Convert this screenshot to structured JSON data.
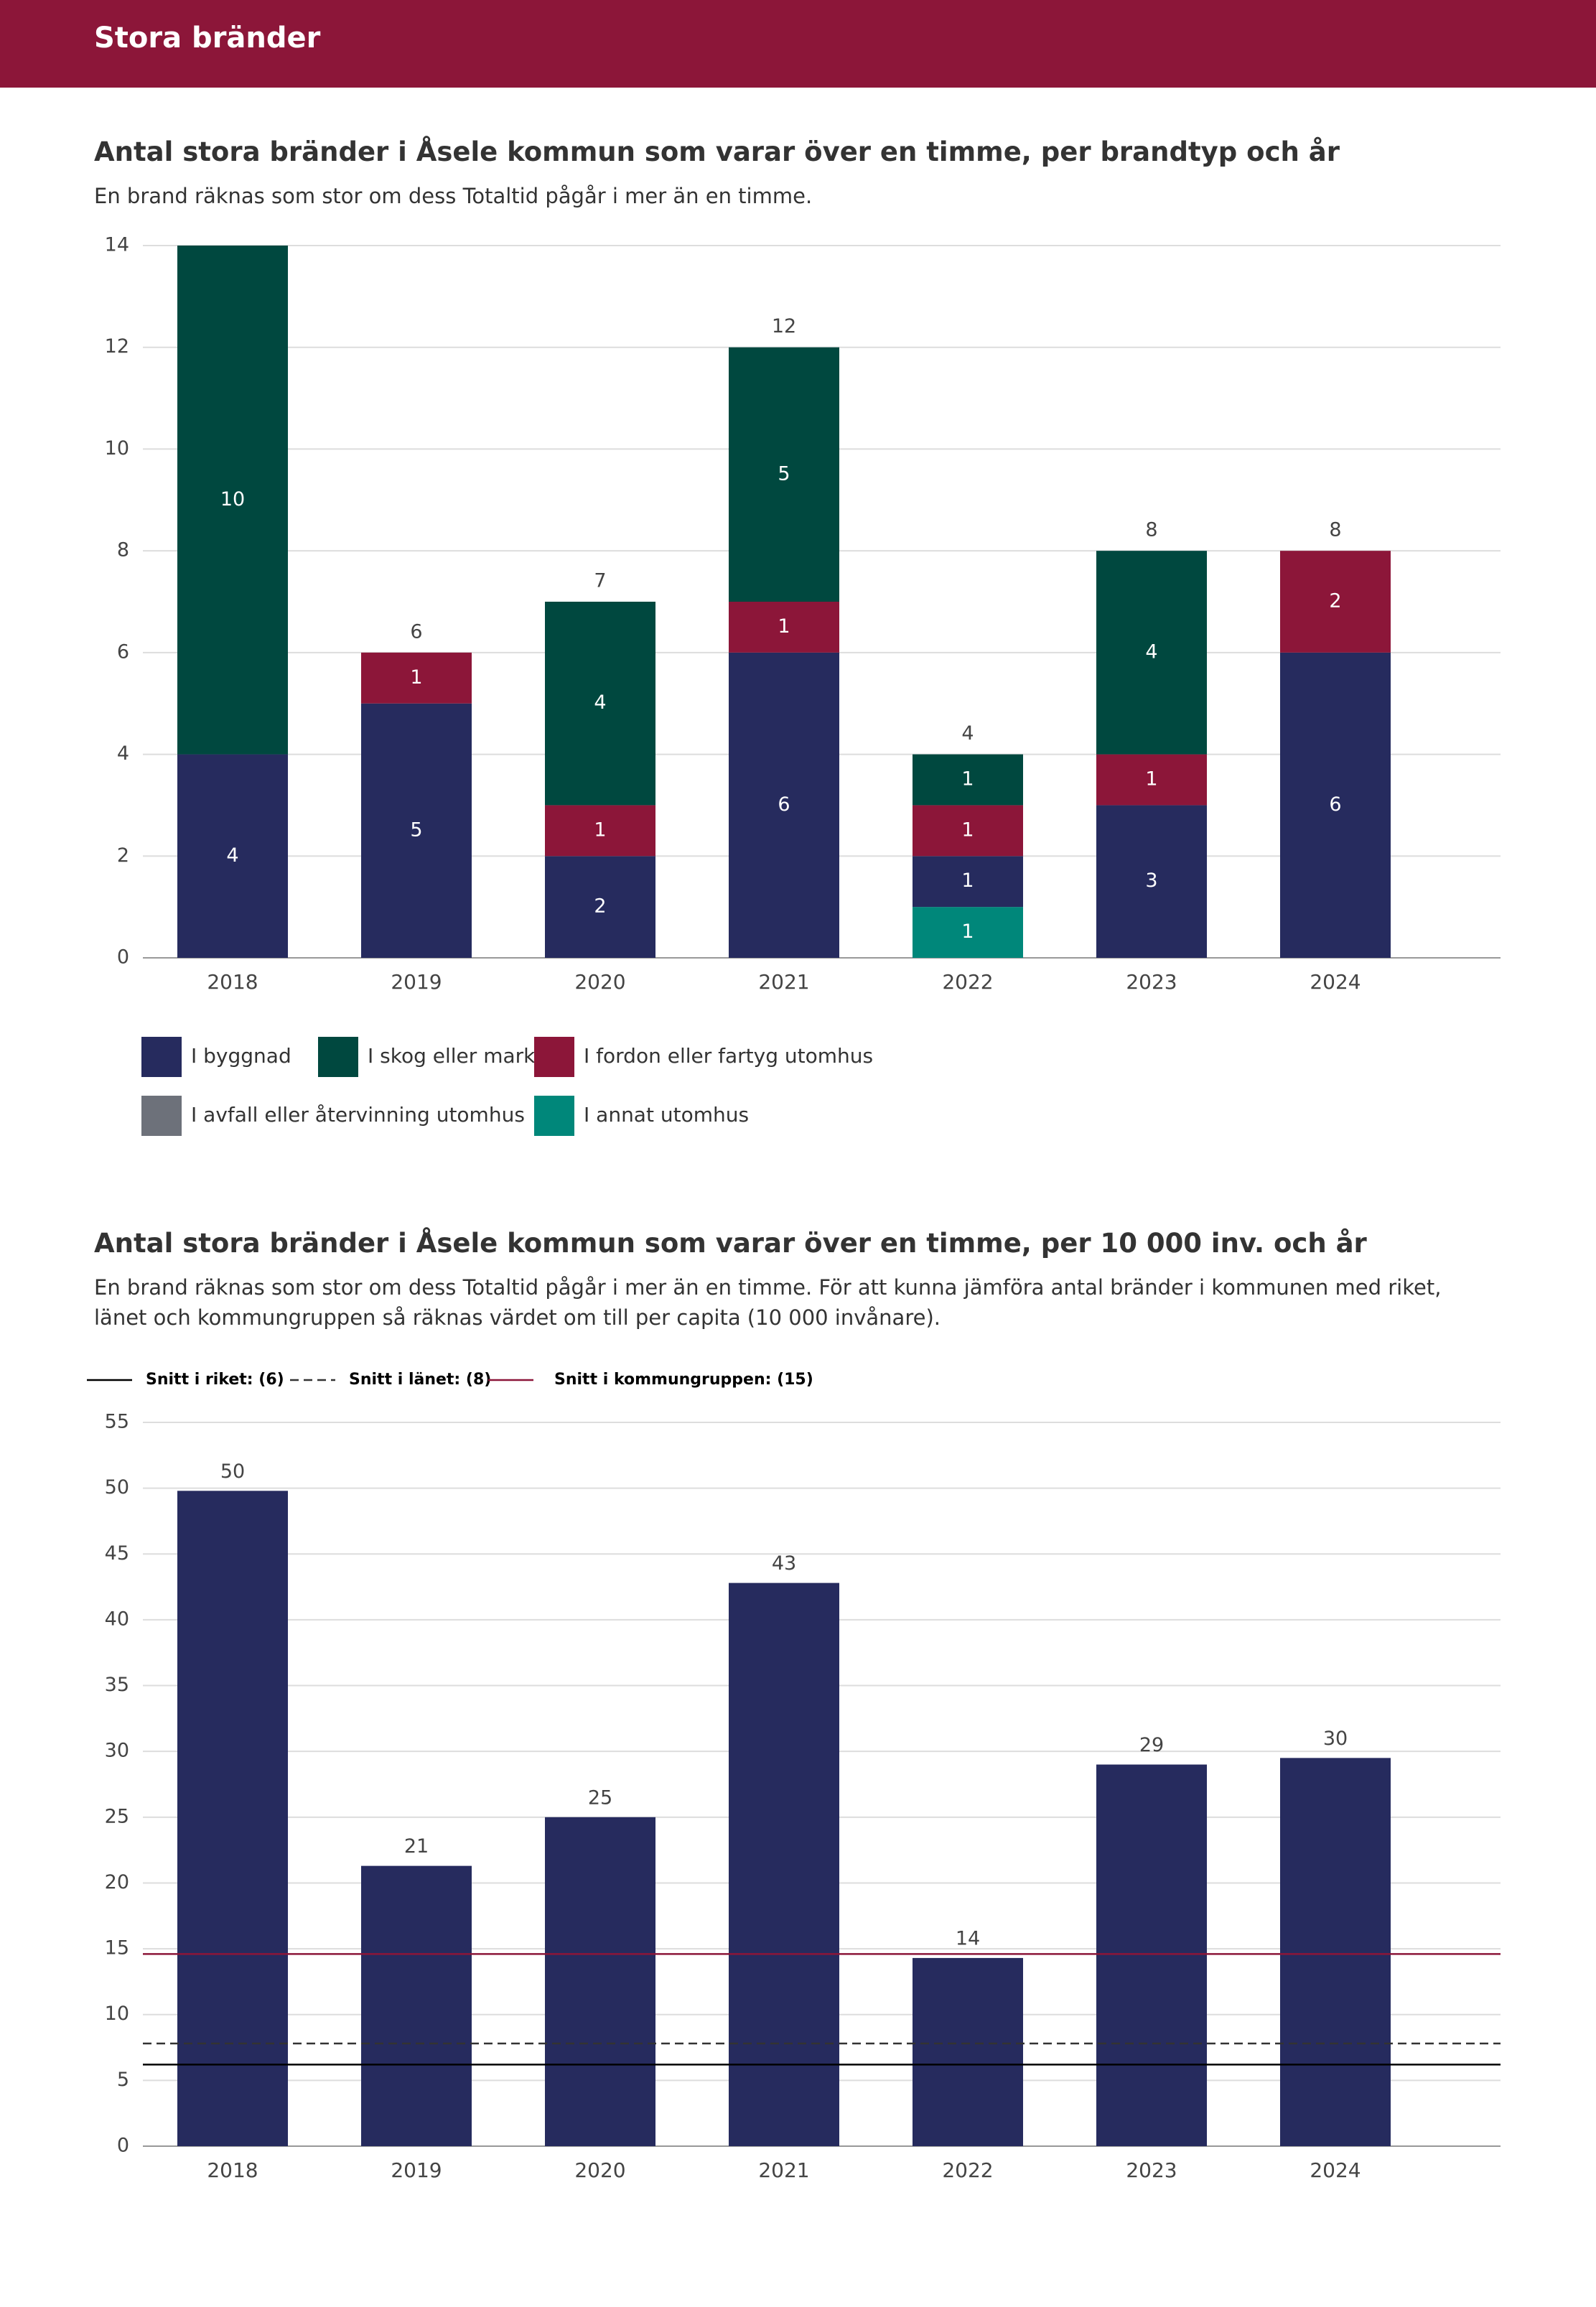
{
  "header": {
    "title": "Stora bränder"
  },
  "chart_data": [
    {
      "type": "stacked-bar",
      "title": "Antal stora bränder i Åsele kommun som varar över en timme, per brandtyp och år",
      "subtitle": "En brand räknas som stor om dess Totaltid pågår i mer än en timme.",
      "categories": [
        "2018",
        "2019",
        "2020",
        "2021",
        "2022",
        "2023",
        "2024"
      ],
      "series": [
        {
          "name": "I byggnad",
          "color": "#262b5e",
          "values": [
            4,
            5,
            2,
            6,
            1,
            3,
            6
          ]
        },
        {
          "name": "I skog eller mark",
          "color": "#00483f",
          "values": [
            10,
            null,
            4,
            5,
            1,
            4,
            null
          ]
        },
        {
          "name": "I fordon eller fartyg utomhus",
          "color": "#8c1639",
          "values": [
            null,
            1,
            1,
            1,
            1,
            1,
            2
          ]
        },
        {
          "name": "I avfall eller återvinning utomhus",
          "color": "#6d717a",
          "values": [
            null,
            null,
            null,
            null,
            null,
            null,
            null
          ]
        },
        {
          "name": "I annat utomhus",
          "color": "#00877a",
          "values": [
            null,
            null,
            null,
            null,
            1,
            null,
            null
          ]
        }
      ],
      "totals": [
        null,
        6,
        7,
        12,
        4,
        8,
        8
      ],
      "ylim": [
        0,
        14
      ],
      "yticks": [
        0,
        2,
        4,
        6,
        8,
        10,
        12,
        14
      ],
      "grid": true
    },
    {
      "type": "bar",
      "title": "Antal stora bränder i Åsele kommun som varar över en timme, per 10 000 inv. och år",
      "subtitle": "En brand räknas som stor om dess Totaltid pågår i mer än en timme. För att kunna jämföra antal bränder i kommunen med riket, länet och kommungruppen så räknas värdet om till per capita (10 000 invånare).",
      "categories": [
        "2018",
        "2019",
        "2020",
        "2021",
        "2022",
        "2023",
        "2024"
      ],
      "values": [
        49.8,
        21.3,
        25,
        42.8,
        14.3,
        29,
        29.5
      ],
      "value_labels": [
        "50",
        "21",
        "25",
        "43",
        "14",
        "29",
        "30"
      ],
      "color": "#262b5e",
      "reference_lines": [
        {
          "name": "Snitt i riket: (6)",
          "value": 6.2,
          "color": "#000000",
          "dashed": false
        },
        {
          "name": "Snitt i länet: (8)",
          "value": 7.8,
          "color": "#333333",
          "dashed": true
        },
        {
          "name": "Snitt i kommungruppen: (15)",
          "value": 14.6,
          "color": "#8c1639",
          "dashed": false
        }
      ],
      "ylim": [
        0,
        55
      ],
      "yticks": [
        0,
        5,
        10,
        15,
        20,
        25,
        30,
        35,
        40,
        45,
        50,
        55
      ],
      "grid": true
    }
  ]
}
